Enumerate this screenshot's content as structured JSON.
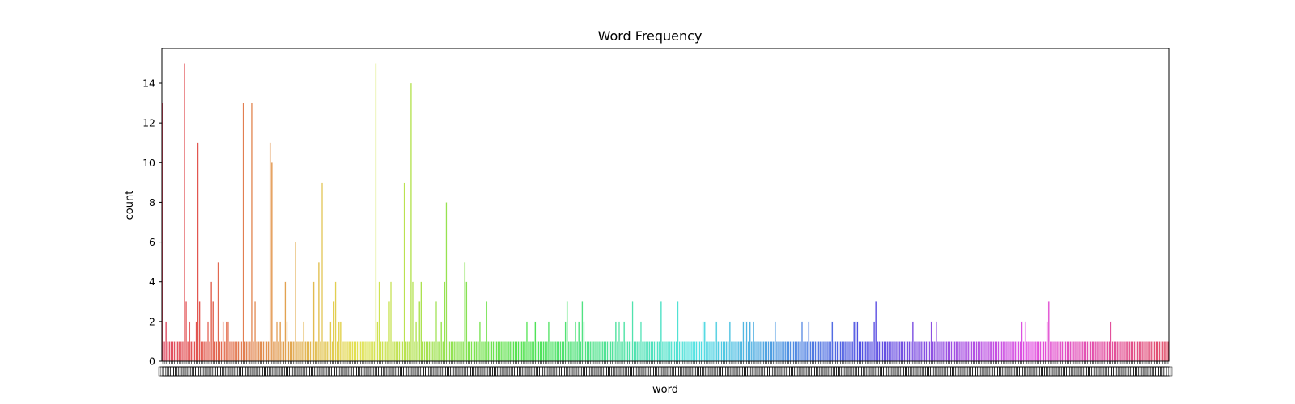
{
  "chart_data": {
    "type": "bar",
    "title": "Word Frequency",
    "xlabel": "word",
    "ylabel": "count",
    "ylim": [
      0,
      15.75
    ],
    "y_ticks": [
      0,
      2,
      4,
      6,
      8,
      10,
      12,
      14
    ],
    "grid": false,
    "legend": "none",
    "bar_count": 600,
    "x_tick_labels_note": "x tick labels render as unreadable overlapping glyph boxes",
    "palette_start": "#f77189",
    "palette_end": "#f7718a",
    "values_notable": [
      {
        "index": 0,
        "value": 13
      },
      {
        "index": 2,
        "value": 2
      },
      {
        "index": 13,
        "value": 15
      },
      {
        "index": 14,
        "value": 3
      },
      {
        "index": 16,
        "value": 2
      },
      {
        "index": 20,
        "value": 2
      },
      {
        "index": 21,
        "value": 11
      },
      {
        "index": 22,
        "value": 3
      },
      {
        "index": 27,
        "value": 2
      },
      {
        "index": 29,
        "value": 4
      },
      {
        "index": 30,
        "value": 3
      },
      {
        "index": 33,
        "value": 5
      },
      {
        "index": 36,
        "value": 2
      },
      {
        "index": 38,
        "value": 2
      },
      {
        "index": 39,
        "value": 2
      },
      {
        "index": 48,
        "value": 13
      },
      {
        "index": 53,
        "value": 13
      },
      {
        "index": 55,
        "value": 3
      },
      {
        "index": 64,
        "value": 11
      },
      {
        "index": 65,
        "value": 10
      },
      {
        "index": 68,
        "value": 2
      },
      {
        "index": 70,
        "value": 2
      },
      {
        "index": 73,
        "value": 4
      },
      {
        "index": 74,
        "value": 2
      },
      {
        "index": 79,
        "value": 6
      },
      {
        "index": 84,
        "value": 2
      },
      {
        "index": 90,
        "value": 4
      },
      {
        "index": 93,
        "value": 5
      },
      {
        "index": 95,
        "value": 9
      },
      {
        "index": 100,
        "value": 2
      },
      {
        "index": 102,
        "value": 3
      },
      {
        "index": 103,
        "value": 4
      },
      {
        "index": 105,
        "value": 2
      },
      {
        "index": 106,
        "value": 2
      },
      {
        "index": 127,
        "value": 15
      },
      {
        "index": 128,
        "value": 2
      },
      {
        "index": 129,
        "value": 4
      },
      {
        "index": 135,
        "value": 3
      },
      {
        "index": 136,
        "value": 4
      },
      {
        "index": 144,
        "value": 9
      },
      {
        "index": 148,
        "value": 14
      },
      {
        "index": 149,
        "value": 4
      },
      {
        "index": 151,
        "value": 2
      },
      {
        "index": 153,
        "value": 3
      },
      {
        "index": 154,
        "value": 4
      },
      {
        "index": 163,
        "value": 3
      },
      {
        "index": 166,
        "value": 2
      },
      {
        "index": 168,
        "value": 4
      },
      {
        "index": 169,
        "value": 8
      },
      {
        "index": 180,
        "value": 5
      },
      {
        "index": 181,
        "value": 4
      },
      {
        "index": 189,
        "value": 2
      },
      {
        "index": 193,
        "value": 3
      },
      {
        "index": 217,
        "value": 2
      },
      {
        "index": 222,
        "value": 2
      },
      {
        "index": 230,
        "value": 2
      },
      {
        "index": 240,
        "value": 2
      },
      {
        "index": 241,
        "value": 3
      },
      {
        "index": 246,
        "value": 2
      },
      {
        "index": 248,
        "value": 2
      },
      {
        "index": 250,
        "value": 3
      },
      {
        "index": 251,
        "value": 2
      },
      {
        "index": 270,
        "value": 2
      },
      {
        "index": 272,
        "value": 2
      },
      {
        "index": 275,
        "value": 2
      },
      {
        "index": 280,
        "value": 3
      },
      {
        "index": 285,
        "value": 2
      },
      {
        "index": 297,
        "value": 3
      },
      {
        "index": 307,
        "value": 3
      },
      {
        "index": 322,
        "value": 2
      },
      {
        "index": 323,
        "value": 2
      },
      {
        "index": 330,
        "value": 2
      },
      {
        "index": 338,
        "value": 2
      },
      {
        "index": 346,
        "value": 2
      },
      {
        "index": 348,
        "value": 2
      },
      {
        "index": 350,
        "value": 2
      },
      {
        "index": 352,
        "value": 2
      },
      {
        "index": 365,
        "value": 2
      },
      {
        "index": 381,
        "value": 2
      },
      {
        "index": 385,
        "value": 2
      },
      {
        "index": 399,
        "value": 2
      },
      {
        "index": 412,
        "value": 2
      },
      {
        "index": 413,
        "value": 2
      },
      {
        "index": 414,
        "value": 2
      },
      {
        "index": 424,
        "value": 2
      },
      {
        "index": 425,
        "value": 3
      },
      {
        "index": 447,
        "value": 2
      },
      {
        "index": 458,
        "value": 2
      },
      {
        "index": 461,
        "value": 2
      },
      {
        "index": 512,
        "value": 2
      },
      {
        "index": 514,
        "value": 2
      },
      {
        "index": 527,
        "value": 2
      },
      {
        "index": 528,
        "value": 3
      },
      {
        "index": 565,
        "value": 2
      }
    ],
    "default_value": 1
  }
}
